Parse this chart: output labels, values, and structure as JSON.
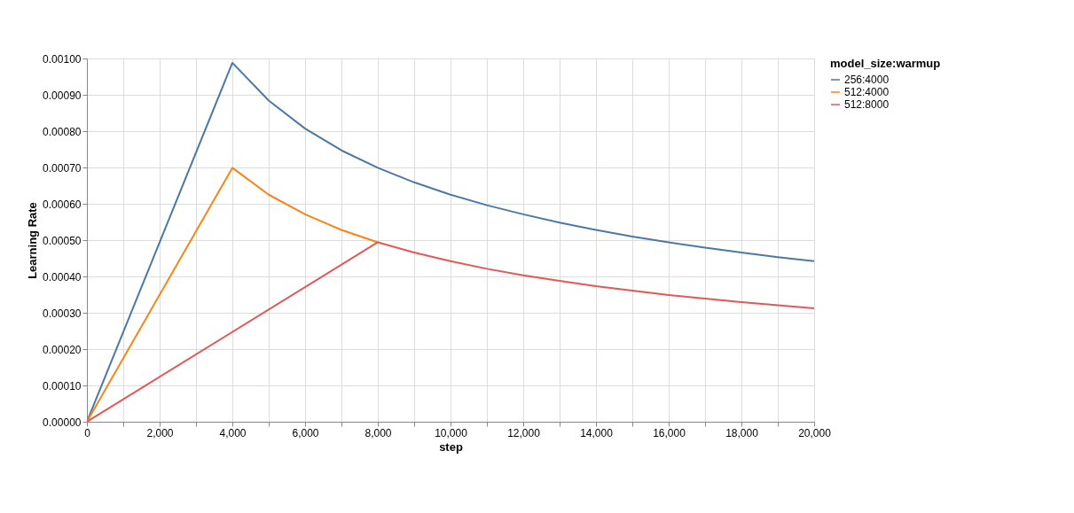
{
  "chart_data": {
    "type": "line",
    "xlabel": "step",
    "ylabel": "Learning Rate",
    "legend_title": "model_size:warmup",
    "legend": "top right",
    "grid": true,
    "marker": "none",
    "line_style": "solid",
    "xlim": [
      0,
      20000
    ],
    "xticks": [
      0,
      {
        "value": 1000,
        "label": null
      },
      {
        "value": 2000,
        "label": "2,000"
      },
      {
        "value": 3000,
        "label": null
      },
      {
        "value": 4000,
        "label": "4,000"
      },
      {
        "value": 5000,
        "label": null
      },
      {
        "value": 6000,
        "label": "6,000"
      },
      {
        "value": 7000,
        "label": null
      },
      {
        "value": 8000,
        "label": "8,000"
      },
      {
        "value": 9000,
        "label": null
      },
      {
        "value": 10000,
        "label": "10,000"
      },
      {
        "value": 11000,
        "label": null
      },
      {
        "value": 12000,
        "label": "12,000"
      },
      {
        "value": 13000,
        "label": null
      },
      {
        "value": 14000,
        "label": "14,000"
      },
      {
        "value": 15000,
        "label": null
      },
      {
        "value": 16000,
        "label": "16,000"
      },
      {
        "value": 17000,
        "label": null
      },
      {
        "value": 18000,
        "label": "18,000"
      },
      {
        "value": 19000,
        "label": null
      },
      {
        "value": 20000,
        "label": "20,000"
      }
    ],
    "ylim": [
      0,
      0.001
    ],
    "yticks": [
      {
        "value": 0,
        "label": "0.00000"
      },
      {
        "value": 0.0001,
        "label": "0.00010"
      },
      {
        "value": 0.0002,
        "label": "0.00020"
      },
      {
        "value": 0.0003,
        "label": "0.00030"
      },
      {
        "value": 0.0004,
        "label": "0.00040"
      },
      {
        "value": 0.0005,
        "label": "0.00050"
      },
      {
        "value": 0.0006,
        "label": "0.00060"
      },
      {
        "value": 0.0007,
        "label": "0.00070"
      },
      {
        "value": 0.0008,
        "label": "0.00080"
      },
      {
        "value": 0.0009,
        "label": "0.00090"
      },
      {
        "value": 0.001,
        "label": "0.00100"
      }
    ],
    "series": [
      {
        "name": "256:4000",
        "color": "#4c78a8",
        "x": [
          0,
          4000,
          5000,
          6000,
          7000,
          8000,
          9000,
          10000,
          11000,
          12000,
          13000,
          14000,
          15000,
          16000,
          17000,
          18000,
          19000,
          20000
        ],
        "values": [
          0,
          0.000988,
          0.000884,
          0.000807,
          0.000747,
          0.000699,
          0.000659,
          0.000625,
          0.000596,
          0.000571,
          0.000548,
          0.000528,
          0.00051,
          0.000494,
          0.000479,
          0.000466,
          0.000453,
          0.000442
        ]
      },
      {
        "name": "512:4000",
        "color": "#f58518",
        "x": [
          0,
          4000,
          5000,
          6000,
          7000,
          8000
        ],
        "values": [
          0,
          0.000699,
          0.000625,
          0.000571,
          0.000528,
          0.000494
        ]
      },
      {
        "name": "512:8000",
        "color": "#e45756",
        "x": [
          0,
          8000,
          9000,
          10000,
          11000,
          12000,
          13000,
          14000,
          15000,
          16000,
          17000,
          18000,
          19000,
          20000
        ],
        "values": [
          0,
          0.000494,
          0.000466,
          0.000442,
          0.000421,
          0.000403,
          0.000388,
          0.000373,
          0.000361,
          0.000349,
          0.000339,
          0.000329,
          0.000321,
          0.000312
        ]
      }
    ]
  }
}
